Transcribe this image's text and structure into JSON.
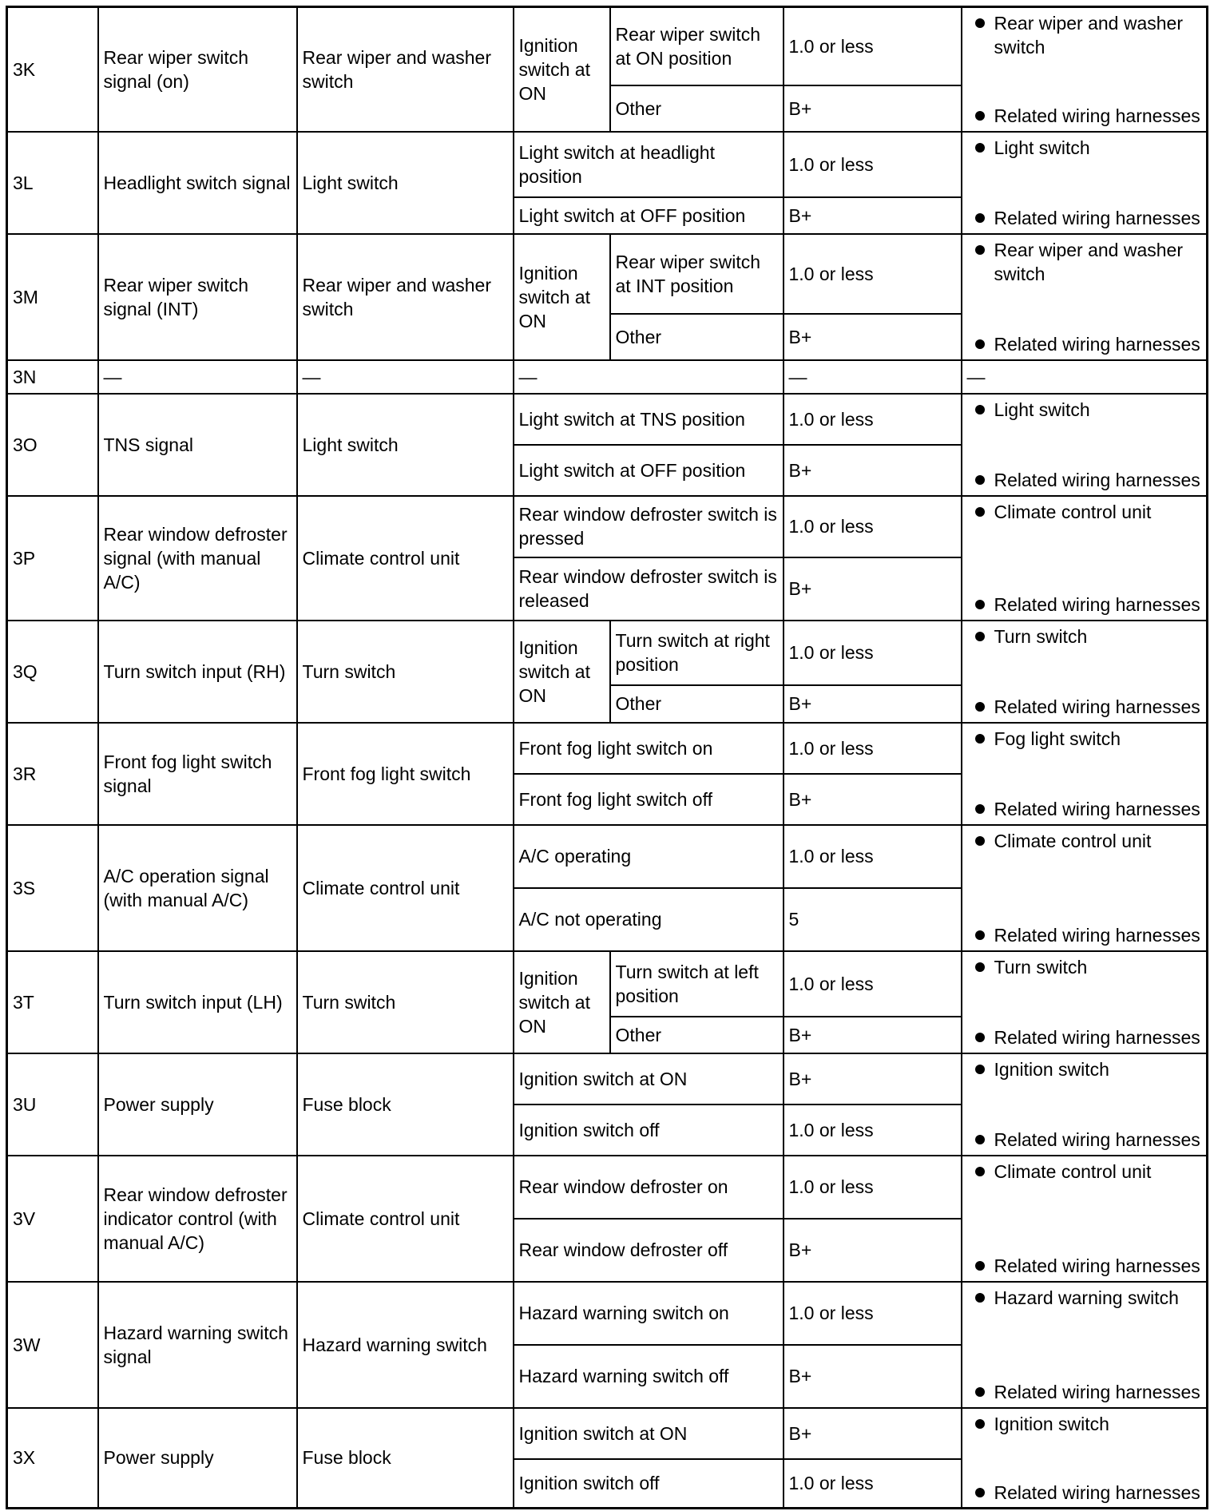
{
  "rows": [
    {
      "id": "3K",
      "desc": "Rear wiper switch signal (on)",
      "unit": "Rear wiper and washer switch",
      "ign": "Ignition switch at ON",
      "conds": [
        {
          "c": "Rear wiper switch at ON position",
          "v": "1.0 or less"
        },
        {
          "c": "Other",
          "v": "B+"
        }
      ],
      "remedy": [
        "Rear wiper and washer switch",
        "Related wiring harnesses"
      ]
    },
    {
      "id": "3L",
      "desc": "Headlight switch signal",
      "unit": "Light switch",
      "conds": [
        {
          "c": "Light switch at headlight position",
          "v": "1.0 or less"
        },
        {
          "c": "Light switch at OFF position",
          "v": "B+"
        }
      ],
      "remedy": [
        "Light switch",
        "Related wiring harnesses"
      ]
    },
    {
      "id": "3M",
      "desc": "Rear wiper switch signal (INT)",
      "unit": "Rear wiper and washer switch",
      "ign": "Ignition switch at ON",
      "conds": [
        {
          "c": "Rear wiper switch at INT position",
          "v": "1.0 or less"
        },
        {
          "c": "Other",
          "v": "B+"
        }
      ],
      "remedy": [
        "Rear wiper and washer switch",
        "Related wiring harnesses"
      ]
    },
    {
      "id": "3N",
      "desc": "—",
      "unit": "—",
      "conds": [
        {
          "c": "—",
          "v": "—"
        }
      ],
      "remedy_text": "—"
    },
    {
      "id": "3O",
      "desc": "TNS signal",
      "unit": "Light switch",
      "conds": [
        {
          "c": "Light switch at TNS position",
          "v": "1.0 or less"
        },
        {
          "c": "Light switch at OFF position",
          "v": "B+"
        }
      ],
      "remedy": [
        "Light switch",
        "Related wiring harnesses"
      ]
    },
    {
      "id": "3P",
      "desc": "Rear window defroster signal (with manual A/C)",
      "unit": "Climate control unit",
      "conds": [
        {
          "c": "Rear window defroster switch is pressed",
          "v": "1.0 or less"
        },
        {
          "c": "Rear window defroster switch is released",
          "v": "B+"
        }
      ],
      "remedy": [
        "Climate control unit",
        "Related wiring harnesses"
      ]
    },
    {
      "id": "3Q",
      "desc": "Turn switch input (RH)",
      "unit": "Turn switch",
      "ign": "Ignition switch at ON",
      "conds": [
        {
          "c": "Turn switch at right position",
          "v": "1.0 or less"
        },
        {
          "c": "Other",
          "v": "B+"
        }
      ],
      "remedy": [
        "Turn switch",
        "Related wiring harnesses"
      ]
    },
    {
      "id": "3R",
      "desc": "Front fog light switch signal",
      "unit": "Front fog light switch",
      "conds": [
        {
          "c": "Front fog light switch on",
          "v": "1.0 or less"
        },
        {
          "c": "Front fog light switch off",
          "v": "B+"
        }
      ],
      "remedy": [
        "Fog light switch",
        "Related wiring harnesses"
      ]
    },
    {
      "id": "3S",
      "desc": "A/C operation signal (with manual A/C)",
      "unit": "Climate control unit",
      "conds": [
        {
          "c": "A/C operating",
          "v": "1.0 or less"
        },
        {
          "c": "A/C not operating",
          "v": "5"
        }
      ],
      "remedy": [
        "Climate control unit",
        "Related wiring harnesses"
      ]
    },
    {
      "id": "3T",
      "desc": "Turn switch input (LH)",
      "unit": "Turn switch",
      "ign": "Ignition switch at ON",
      "conds": [
        {
          "c": "Turn switch at left position",
          "v": "1.0 or less"
        },
        {
          "c": "Other",
          "v": "B+"
        }
      ],
      "remedy": [
        "Turn switch",
        "Related wiring harnesses"
      ]
    },
    {
      "id": "3U",
      "desc": "Power supply",
      "unit": "Fuse block",
      "conds": [
        {
          "c": "Ignition switch at ON",
          "v": "B+"
        },
        {
          "c": "Ignition switch off",
          "v": "1.0 or less"
        }
      ],
      "remedy": [
        "Ignition switch",
        "Related wiring harnesses"
      ]
    },
    {
      "id": "3V",
      "desc": "Rear window defroster indicator control (with manual A/C)",
      "unit": "Climate control unit",
      "conds": [
        {
          "c": "Rear window defroster on",
          "v": "1.0 or less"
        },
        {
          "c": "Rear window defroster off",
          "v": "B+"
        }
      ],
      "remedy": [
        "Climate control unit",
        "Related wiring harnesses"
      ]
    },
    {
      "id": "3W",
      "desc": "Hazard warning switch signal",
      "unit": "Hazard warning switch",
      "conds": [
        {
          "c": "Hazard warning switch on",
          "v": "1.0 or less"
        },
        {
          "c": "Hazard warning switch off",
          "v": "B+"
        }
      ],
      "remedy": [
        "Hazard warning switch",
        "Related wiring harnesses"
      ]
    },
    {
      "id": "3X",
      "desc": "Power supply",
      "unit": "Fuse block",
      "conds": [
        {
          "c": "Ignition switch at ON",
          "v": "B+"
        },
        {
          "c": "Ignition switch off",
          "v": "1.0 or less"
        }
      ],
      "remedy": [
        "Ignition switch",
        "Related wiring harnesses"
      ]
    }
  ]
}
